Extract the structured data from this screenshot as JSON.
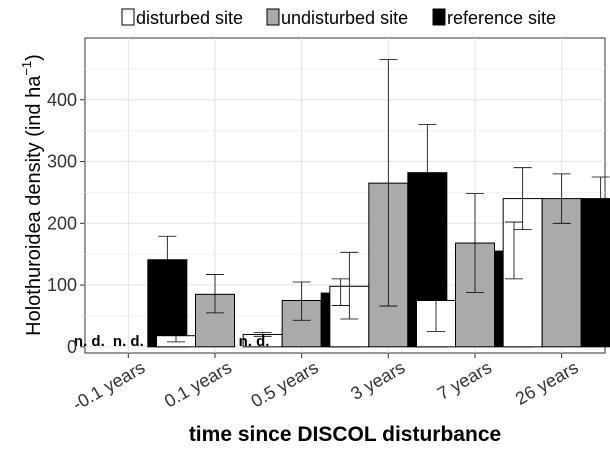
{
  "chart_data": {
    "type": "bar",
    "title": "",
    "xlabel": "time since DISCOL disturbance",
    "ylabel": "Holothuroidea density (ind ha",
    "ylabel_sup": "−1",
    "ylabel_close": ")",
    "ylim": [
      -10,
      500
    ],
    "yticks": [
      0,
      100,
      200,
      300,
      400
    ],
    "grid": true,
    "legend_position": "top",
    "categories": [
      "-0.1 years",
      "0.1 years",
      "0.5 years",
      "3 years",
      "7 years",
      "26 years"
    ],
    "series": [
      {
        "name": "disturbed site",
        "color": "#ffffff",
        "values": [
          null,
          18,
          20,
          98,
          75,
          240
        ],
        "error": [
          [
            null,
            null
          ],
          [
            8,
            28
          ],
          [
            17,
            23
          ],
          [
            45,
            153
          ],
          [
            25,
            125
          ],
          [
            190,
            290
          ]
        ],
        "labels": [
          "n. d.",
          null,
          null,
          null,
          null,
          null
        ]
      },
      {
        "name": "undisturbed site",
        "color": "#aaaaaa",
        "values": [
          null,
          85,
          75,
          265,
          168,
          240
        ],
        "error": [
          [
            null,
            null
          ],
          [
            55,
            117
          ],
          [
            43,
            105
          ],
          [
            66,
            465
          ],
          [
            88,
            248
          ],
          [
            200,
            280
          ]
        ],
        "labels": [
          "n. d.",
          null,
          null,
          null,
          null,
          null
        ]
      },
      {
        "name": "reference site",
        "color": "#000000",
        "values": [
          141,
          null,
          87,
          282,
          155,
          240
        ],
        "error": [
          [
            104,
            179
          ],
          [
            null,
            null
          ],
          [
            67,
            110
          ],
          [
            205,
            360
          ],
          [
            110,
            202
          ],
          [
            205,
            275
          ]
        ],
        "labels": [
          null,
          "n. d.",
          null,
          null,
          null,
          null
        ]
      }
    ]
  }
}
